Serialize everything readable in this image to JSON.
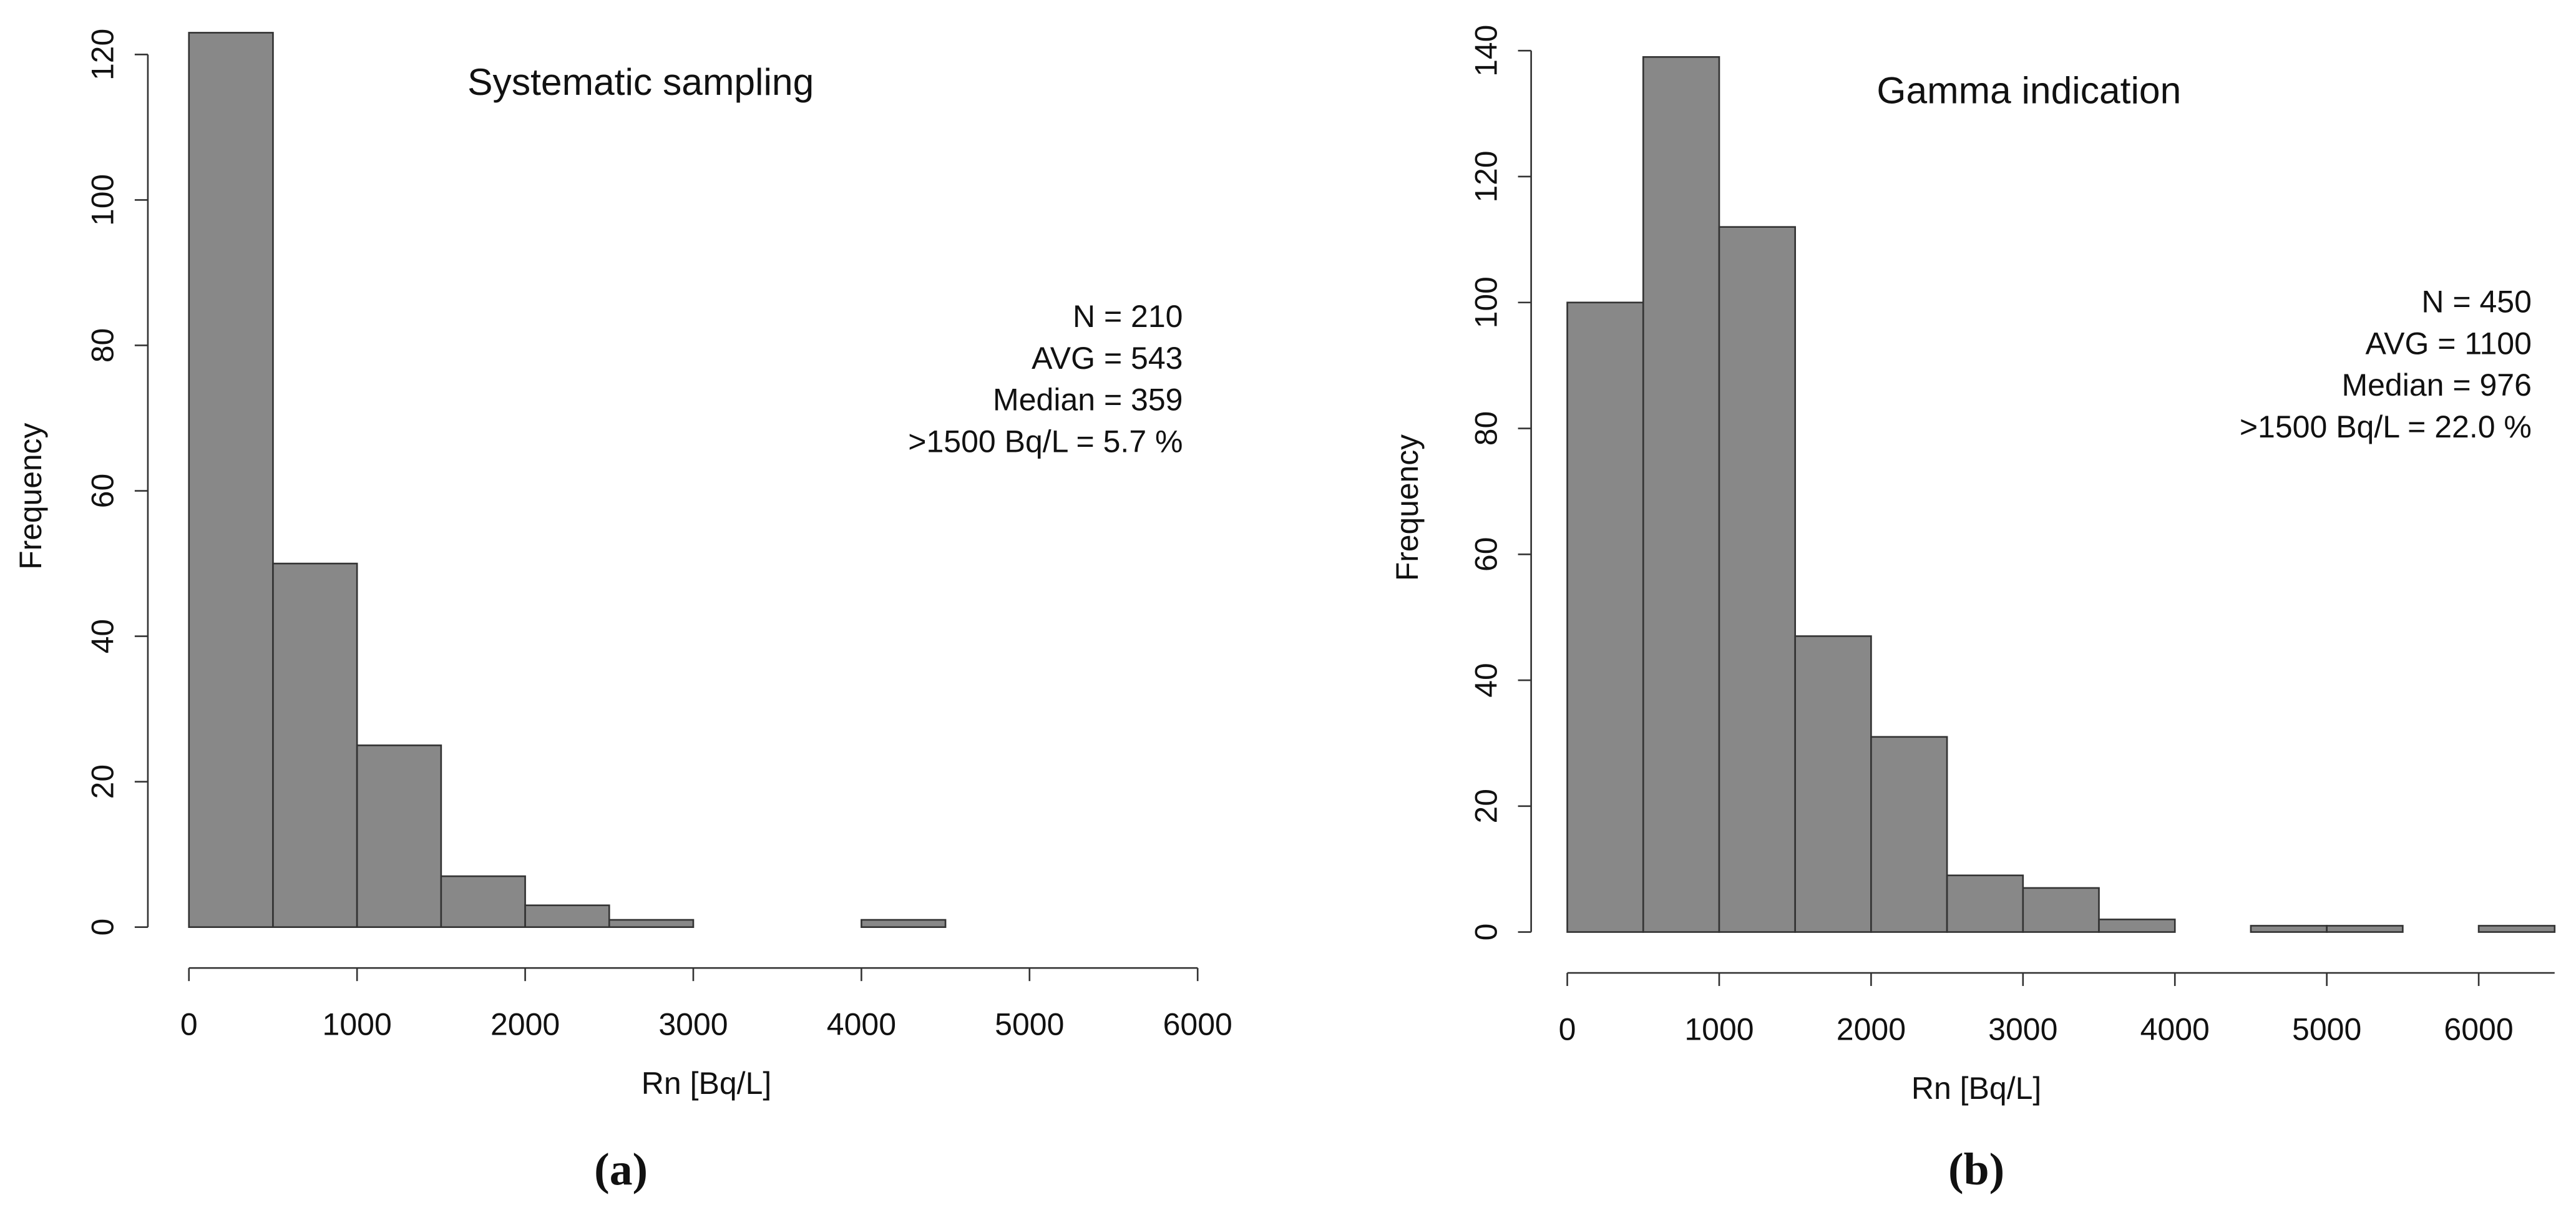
{
  "chart_data": [
    {
      "type": "histogram",
      "title": "Systematic sampling",
      "x_label": "Rn [Bq/L]",
      "y_label": "Frequency",
      "bins": [
        0,
        500,
        1000,
        1500,
        2000,
        2500,
        3000,
        3500,
        4000,
        4500
      ],
      "values": [
        123,
        50,
        25,
        7,
        3,
        1,
        0,
        0,
        1
      ],
      "color": "#888888",
      "xlim": [
        0,
        6000
      ],
      "xticks": [
        0,
        1000,
        2000,
        3000,
        4000,
        5000,
        6000
      ],
      "ylim": [
        0,
        123
      ],
      "yticks": [
        0,
        20,
        40,
        60,
        80,
        100,
        120
      ],
      "annotations": [
        "N = 210",
        "AVG = 543",
        "Median = 359",
        ">1500 Bq/L = 5.7 %"
      ],
      "panel_label": "(a)"
    },
    {
      "type": "histogram",
      "title": "Gamma indication",
      "x_label": "Rn [Bq/L]",
      "y_label": "Frequency",
      "bins": [
        0,
        500,
        1000,
        1500,
        2000,
        2500,
        3000,
        3500,
        4000,
        4500,
        5000,
        5500,
        6000,
        6500
      ],
      "values": [
        100,
        139,
        112,
        47,
        31,
        9,
        7,
        2,
        0,
        1,
        1,
        0,
        1
      ],
      "color": "#888888",
      "xlim": [
        0,
        6500
      ],
      "xticks": [
        0,
        1000,
        2000,
        3000,
        4000,
        5000,
        6000
      ],
      "ylim": [
        0,
        140
      ],
      "yticks": [
        0,
        20,
        40,
        60,
        80,
        100,
        120,
        140
      ],
      "annotations": [
        "N = 450",
        "AVG = 1100",
        "Median = 976",
        ">1500 Bq/L = 22.0 %"
      ],
      "panel_label": "(b)"
    }
  ]
}
